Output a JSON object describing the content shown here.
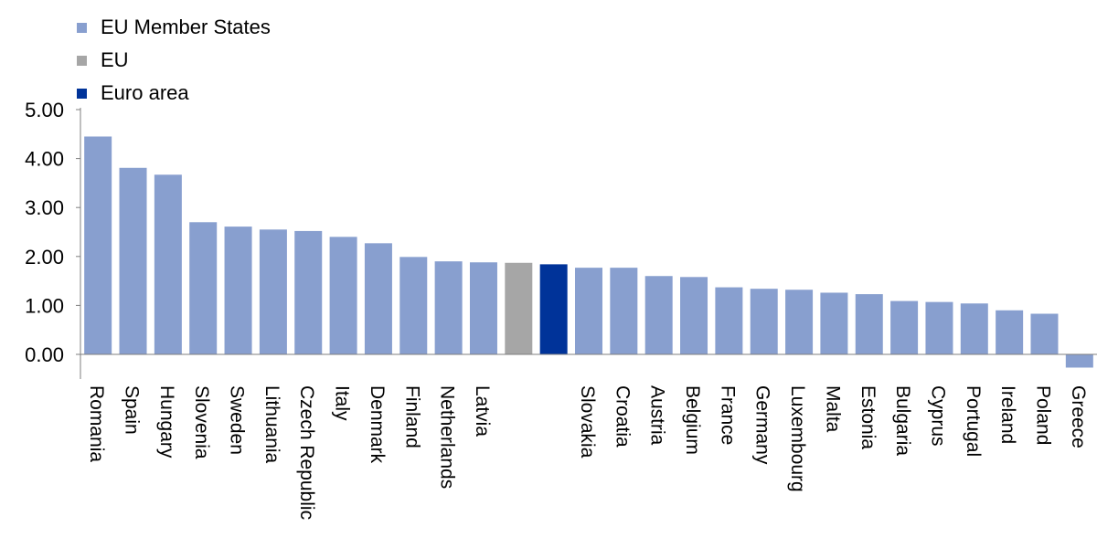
{
  "colors": {
    "member": "#889fcf",
    "eu": "#a6a6a6",
    "euro": "#003399",
    "axis": "#7f7f7f"
  },
  "legend": {
    "items": [
      {
        "label": "EU Member States",
        "color": "#889fcf"
      },
      {
        "label": "EU",
        "color": "#a6a6a6"
      },
      {
        "label": "Euro area",
        "color": "#003399"
      }
    ]
  },
  "chart_data": {
    "type": "bar",
    "title": "",
    "xlabel": "",
    "ylabel": "",
    "ylim": [
      -0.25,
      5.0
    ],
    "yticks": [
      0,
      1,
      2,
      3,
      4,
      5
    ],
    "ytick_labels": [
      "0.00",
      "1.00",
      "2.00",
      "3.00",
      "4.00",
      "5.00"
    ],
    "grid": false,
    "legend_position": "top-left",
    "categories": [
      "Romania",
      "Spain",
      "Hungary",
      "Slovenia",
      "Sweden",
      "Lithuania",
      "Czech Republic",
      "Italy",
      "Denmark",
      "Finland",
      "Netherlands",
      "Latvia",
      "EU",
      "Euro area",
      "Slovakia",
      "Croatia",
      "Austria",
      "Belgium",
      "France",
      "Germany",
      "Luxembourg",
      "Malta",
      "Estonia",
      "Bulgaria",
      "Cyprus",
      "Portugal",
      "Ireland",
      "Poland",
      "Greece"
    ],
    "tick_labels": [
      "Romania",
      "Spain",
      "Hungary",
      "Slovenia",
      "Sweden",
      "Lithuania",
      "Czech Republic",
      "Italy",
      "Denmark",
      "Finland",
      "Netherlands",
      "Latvia",
      "",
      "",
      "Slovakia",
      "Croatia",
      "Austria",
      "Belgium",
      "France",
      "Germany",
      "Luxembourg",
      "Malta",
      "Estonia",
      "Bulgaria",
      "Cyprus",
      "Portugal",
      "Ireland",
      "Poland",
      "Greece"
    ],
    "groups": [
      "member",
      "member",
      "member",
      "member",
      "member",
      "member",
      "member",
      "member",
      "member",
      "member",
      "member",
      "member",
      "eu",
      "euro",
      "member",
      "member",
      "member",
      "member",
      "member",
      "member",
      "member",
      "member",
      "member",
      "member",
      "member",
      "member",
      "member",
      "member",
      "member"
    ],
    "series": [
      {
        "name": "EU Member States",
        "values": [
          4.45,
          3.81,
          3.67,
          2.7,
          2.61,
          2.55,
          2.52,
          2.4,
          2.27,
          1.99,
          1.9,
          1.88,
          null,
          null,
          1.77,
          1.77,
          1.6,
          1.58,
          1.37,
          1.34,
          1.32,
          1.26,
          1.23,
          1.09,
          1.07,
          1.04,
          0.9,
          0.83,
          -0.27
        ]
      },
      {
        "name": "EU",
        "values": [
          null,
          null,
          null,
          null,
          null,
          null,
          null,
          null,
          null,
          null,
          null,
          null,
          1.87,
          null,
          null,
          null,
          null,
          null,
          null,
          null,
          null,
          null,
          null,
          null,
          null,
          null,
          null,
          null,
          null
        ]
      },
      {
        "name": "Euro area",
        "values": [
          null,
          null,
          null,
          null,
          null,
          null,
          null,
          null,
          null,
          null,
          null,
          null,
          null,
          1.84,
          null,
          null,
          null,
          null,
          null,
          null,
          null,
          null,
          null,
          null,
          null,
          null,
          null,
          null,
          null
        ]
      }
    ]
  }
}
